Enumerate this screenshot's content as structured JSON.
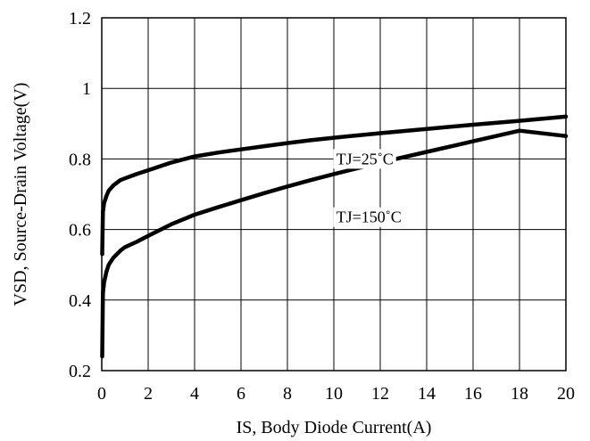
{
  "chart_data": {
    "type": "line",
    "title": "",
    "xlabel": "IS, Body Diode Current(A)",
    "ylabel": "VSD, Source-Drain Voltage(V)",
    "xlim": [
      0,
      20
    ],
    "ylim": [
      0.2,
      1.2
    ],
    "xticks": [
      0,
      2,
      4,
      6,
      8,
      10,
      12,
      14,
      16,
      18,
      20
    ],
    "yticks": [
      0.2,
      0.4,
      0.6,
      0.8,
      1.0,
      1.2
    ],
    "xtick_labels": [
      "0",
      "2",
      "4",
      "6",
      "8",
      "10",
      "12",
      "14",
      "16",
      "18",
      "20"
    ],
    "ytick_labels": [
      "0.2",
      "0.4",
      "0.6",
      "0.8",
      "1",
      "1.2"
    ],
    "grid": true,
    "legend": "none",
    "line_color": "#000000",
    "series": [
      {
        "name": "TJ=25˚C",
        "x": [
          0.02,
          0.05,
          0.1,
          0.2,
          0.3,
          0.5,
          0.8,
          1,
          1.5,
          2,
          3,
          4,
          5,
          6,
          7,
          8,
          9,
          10,
          12,
          14,
          16,
          18,
          20
        ],
        "y": [
          0.53,
          0.65,
          0.675,
          0.695,
          0.71,
          0.725,
          0.74,
          0.745,
          0.757,
          0.768,
          0.79,
          0.807,
          0.818,
          0.827,
          0.836,
          0.845,
          0.853,
          0.86,
          0.873,
          0.885,
          0.897,
          0.908,
          0.92
        ]
      },
      {
        "name": "TJ=150˚C",
        "x": [
          0.02,
          0.05,
          0.1,
          0.2,
          0.3,
          0.5,
          0.8,
          1,
          1.5,
          2,
          3,
          4,
          5,
          6,
          7,
          8,
          9,
          10,
          12,
          14,
          16,
          18,
          20
        ],
        "y": [
          0.24,
          0.42,
          0.45,
          0.48,
          0.5,
          0.52,
          0.54,
          0.55,
          0.565,
          0.582,
          0.615,
          0.642,
          0.663,
          0.683,
          0.703,
          0.722,
          0.74,
          0.757,
          0.79,
          0.82,
          0.85,
          0.88,
          0.865
        ]
      }
    ],
    "annotations": [
      {
        "text": "TJ=25˚C",
        "x": 10.1,
        "y": 0.8
      },
      {
        "text": "TJ=150˚C",
        "x": 10.1,
        "y": 0.635
      }
    ]
  }
}
